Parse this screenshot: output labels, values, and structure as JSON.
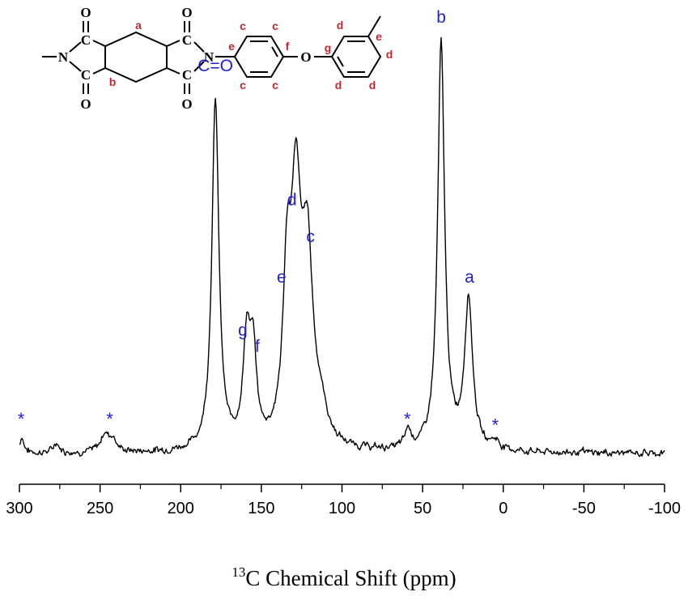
{
  "chart_data": {
    "type": "line",
    "xlabel_superscript": "13",
    "xlabel": "C Chemical Shift (ppm)",
    "ylabel": "",
    "xlim": [
      300,
      -100
    ],
    "x_reversed": true,
    "x_ticks": [
      300,
      250,
      200,
      150,
      100,
      50,
      0,
      -50,
      -100
    ],
    "x_tick_labels": [
      "300",
      "250",
      "200",
      "150",
      "100",
      "50",
      "0",
      "-50",
      "-100"
    ],
    "grid": false,
    "series": [
      {
        "baseline": 0.04,
        "peaks": [
          {
            "x": 298.5,
            "height": 0.04,
            "width": 1.5
          },
          {
            "x": 277,
            "height": 0.025,
            "width": 2
          },
          {
            "x": 247,
            "height": 0.045,
            "width": 3
          },
          {
            "x": 242,
            "height": 0.03,
            "width": 2.5
          },
          {
            "x": 178.5,
            "height": 0.86,
            "width": 2.6
          },
          {
            "x": 159,
            "height": 0.26,
            "width": 2.8
          },
          {
            "x": 155,
            "height": 0.2,
            "width": 2.4
          },
          {
            "x": 134,
            "height": 0.38,
            "width": 3.0
          },
          {
            "x": 128.5,
            "height": 0.55,
            "width": 3.6
          },
          {
            "x": 121.5,
            "height": 0.46,
            "width": 4.2
          },
          {
            "x": 113,
            "height": 0.06,
            "width": 4.5
          },
          {
            "x": 59,
            "height": 0.045,
            "width": 2.2
          },
          {
            "x": 38.5,
            "height": 1.0,
            "width": 2.6
          },
          {
            "x": 21.5,
            "height": 0.37,
            "width": 3.0
          },
          {
            "x": 5,
            "height": 0.02,
            "width": 3
          }
        ]
      }
    ],
    "annotations": [
      {
        "text": "C=O",
        "x": 178.5,
        "y": 0.98
      },
      {
        "text": "g",
        "x": 161.5,
        "y": 0.33
      },
      {
        "text": "f",
        "x": 152.5,
        "y": 0.29
      },
      {
        "text": "e",
        "x": 137.5,
        "y": 0.46
      },
      {
        "text": "d",
        "x": 131,
        "y": 0.65
      },
      {
        "text": "c",
        "x": 119.5,
        "y": 0.56
      },
      {
        "text": "b",
        "x": 38.5,
        "y": 1.1
      },
      {
        "text": "a",
        "x": 21,
        "y": 0.46
      },
      {
        "text": "*",
        "x": 299,
        "y": 0.11
      },
      {
        "text": "*",
        "x": 244,
        "y": 0.11
      },
      {
        "text": "*",
        "x": 59.5,
        "y": 0.11
      },
      {
        "text": "*",
        "x": 5,
        "y": 0.095
      }
    ]
  },
  "structure": {
    "atoms": {
      "O": "O",
      "N": "N",
      "C": "C"
    },
    "site_labels": {
      "a": "a",
      "b": "b",
      "c": "c",
      "d": "d",
      "e": "e",
      "f": "f",
      "g": "g"
    }
  }
}
